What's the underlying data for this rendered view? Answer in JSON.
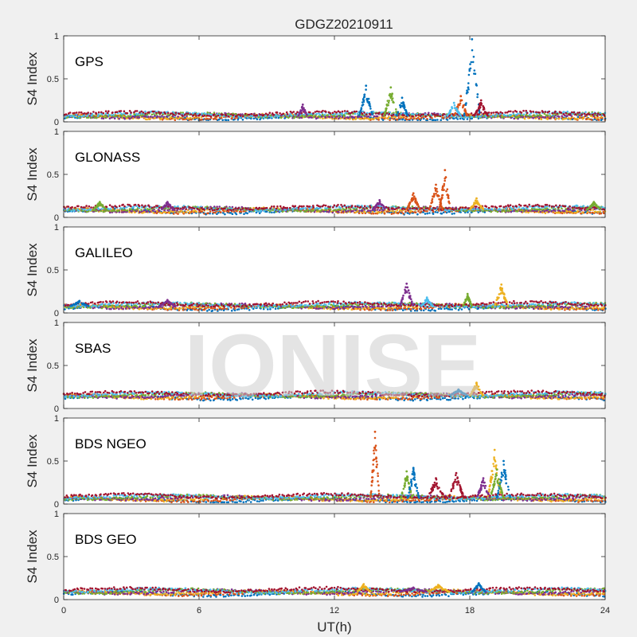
{
  "figure_title": "GDGZ20210911",
  "watermark": "IONISE",
  "colors": {
    "background": "#f0f0f0",
    "axes_background": "#ffffff",
    "axis_color": "#262626",
    "series_palette": [
      "#0072BD",
      "#D95319",
      "#EDB120",
      "#7E2F8E",
      "#77AC30",
      "#4DBEEE",
      "#A2142F"
    ]
  },
  "chart_data": [
    {
      "type": "scatter",
      "label": "GPS",
      "ylabel": "S4 Index",
      "xlim": [
        0,
        24
      ],
      "ylim": [
        0,
        1
      ],
      "yticks": [
        "0",
        "0.5",
        "1"
      ],
      "background_level": 0.07,
      "peaks": [
        {
          "t": 13.4,
          "v": 0.42,
          "w": 0.3,
          "color": "#0072BD"
        },
        {
          "t": 14.5,
          "v": 0.4,
          "w": 0.3,
          "color": "#77AC30"
        },
        {
          "t": 15.0,
          "v": 0.28,
          "w": 0.25,
          "color": "#0072BD"
        },
        {
          "t": 18.1,
          "v": 0.96,
          "w": 0.35,
          "color": "#0072BD"
        },
        {
          "t": 17.6,
          "v": 0.3,
          "w": 0.3,
          "color": "#D95319"
        },
        {
          "t": 17.3,
          "v": 0.22,
          "w": 0.3,
          "color": "#4DBEEE"
        },
        {
          "t": 18.5,
          "v": 0.25,
          "w": 0.3,
          "color": "#A2142F"
        },
        {
          "t": 10.6,
          "v": 0.2,
          "w": 0.2,
          "color": "#7E2F8E"
        }
      ]
    },
    {
      "type": "scatter",
      "label": "GLONASS",
      "ylabel": "S4 Index",
      "xlim": [
        0,
        24
      ],
      "ylim": [
        0,
        1
      ],
      "yticks": [
        "0",
        "0.5",
        "1"
      ],
      "background_level": 0.09,
      "peaks": [
        {
          "t": 15.5,
          "v": 0.28,
          "w": 0.3,
          "color": "#D95319"
        },
        {
          "t": 16.5,
          "v": 0.38,
          "w": 0.3,
          "color": "#D95319"
        },
        {
          "t": 16.9,
          "v": 0.55,
          "w": 0.25,
          "color": "#D95319"
        },
        {
          "t": 18.3,
          "v": 0.22,
          "w": 0.3,
          "color": "#EDB120"
        },
        {
          "t": 14.0,
          "v": 0.2,
          "w": 0.3,
          "color": "#7E2F8E"
        },
        {
          "t": 1.6,
          "v": 0.18,
          "w": 0.3,
          "color": "#77AC30"
        },
        {
          "t": 4.6,
          "v": 0.18,
          "w": 0.3,
          "color": "#7E2F8E"
        },
        {
          "t": 23.5,
          "v": 0.18,
          "w": 0.3,
          "color": "#77AC30"
        }
      ]
    },
    {
      "type": "scatter",
      "label": "GALILEO",
      "ylabel": "S4 Index",
      "xlim": [
        0,
        24
      ],
      "ylim": [
        0,
        1
      ],
      "yticks": [
        "0",
        "0.5",
        "1"
      ],
      "background_level": 0.08,
      "peaks": [
        {
          "t": 15.2,
          "v": 0.34,
          "w": 0.3,
          "color": "#7E2F8E"
        },
        {
          "t": 16.1,
          "v": 0.18,
          "w": 0.25,
          "color": "#4DBEEE"
        },
        {
          "t": 17.9,
          "v": 0.22,
          "w": 0.2,
          "color": "#77AC30"
        },
        {
          "t": 19.4,
          "v": 0.33,
          "w": 0.3,
          "color": "#EDB120"
        },
        {
          "t": 0.7,
          "v": 0.14,
          "w": 0.4,
          "color": "#0072BD"
        },
        {
          "t": 4.6,
          "v": 0.15,
          "w": 0.35,
          "color": "#7E2F8E"
        }
      ]
    },
    {
      "type": "scatter",
      "label": "SBAS",
      "ylabel": "S4 Index",
      "xlim": [
        0,
        24
      ],
      "ylim": [
        0,
        1
      ],
      "yticks": [
        "0",
        "0.5",
        "1"
      ],
      "background_level": 0.15,
      "peaks": [
        {
          "t": 18.3,
          "v": 0.3,
          "w": 0.3,
          "color": "#EDB120"
        },
        {
          "t": 17.5,
          "v": 0.22,
          "w": 0.4,
          "color": "#0072BD"
        }
      ]
    },
    {
      "type": "scatter",
      "label": "BDS NGEO",
      "ylabel": "S4 Index",
      "xlim": [
        0,
        24
      ],
      "ylim": [
        0,
        1
      ],
      "yticks": [
        "0",
        "0.5",
        "1"
      ],
      "background_level": 0.07,
      "peaks": [
        {
          "t": 13.8,
          "v": 0.84,
          "w": 0.2,
          "color": "#D95319"
        },
        {
          "t": 15.2,
          "v": 0.38,
          "w": 0.25,
          "color": "#77AC30"
        },
        {
          "t": 15.5,
          "v": 0.42,
          "w": 0.25,
          "color": "#0072BD"
        },
        {
          "t": 16.5,
          "v": 0.3,
          "w": 0.4,
          "color": "#A2142F"
        },
        {
          "t": 17.4,
          "v": 0.36,
          "w": 0.35,
          "color": "#A2142F"
        },
        {
          "t": 19.1,
          "v": 0.63,
          "w": 0.3,
          "color": "#EDB120"
        },
        {
          "t": 19.5,
          "v": 0.5,
          "w": 0.3,
          "color": "#0072BD"
        },
        {
          "t": 19.2,
          "v": 0.4,
          "w": 0.3,
          "color": "#77AC30"
        },
        {
          "t": 18.6,
          "v": 0.3,
          "w": 0.3,
          "color": "#7E2F8E"
        }
      ]
    },
    {
      "type": "scatter",
      "label": "BDS GEO",
      "ylabel": "S4 Index",
      "xlabel": "UT(h)",
      "xlim": [
        0,
        24
      ],
      "ylim": [
        0,
        1
      ],
      "yticks": [
        "0",
        "0.5",
        "1"
      ],
      "xticks": [
        "0",
        "6",
        "12",
        "18",
        "24"
      ],
      "background_level": 0.09,
      "peaks": [
        {
          "t": 13.3,
          "v": 0.18,
          "w": 0.3,
          "color": "#EDB120"
        },
        {
          "t": 16.6,
          "v": 0.17,
          "w": 0.5,
          "color": "#EDB120"
        },
        {
          "t": 18.4,
          "v": 0.19,
          "w": 0.3,
          "color": "#0072BD"
        },
        {
          "t": 15.5,
          "v": 0.14,
          "w": 0.6,
          "color": "#7E2F8E"
        }
      ]
    }
  ]
}
